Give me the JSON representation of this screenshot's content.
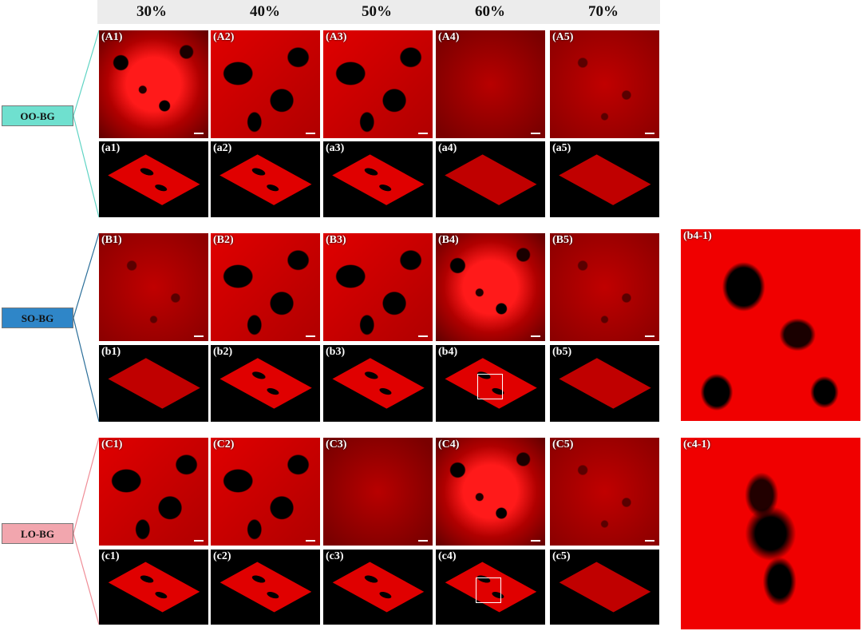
{
  "columns": [
    "30%",
    "40%",
    "50%",
    "60%",
    "70%"
  ],
  "groups": [
    {
      "name": "OO-BG",
      "color": "#6fe0cf",
      "line_color": "#5fd4c4"
    },
    {
      "name": "SO-BG",
      "color": "#2f86c8",
      "line_color": "#2a6e99"
    },
    {
      "name": "LO-BG",
      "color": "#f2a6ae",
      "line_color": "#f08c96"
    }
  ],
  "panels": {
    "row_A": [
      "(A1)",
      "(A2)",
      "(A3)",
      "(A4)",
      "(A5)"
    ],
    "row_a": [
      "(a1)",
      "(a2)",
      "(a3)",
      "(a4)",
      "(a5)"
    ],
    "row_B": [
      "(B1)",
      "(B2)",
      "(B3)",
      "(B4)",
      "(B5)"
    ],
    "row_b": [
      "(b1)",
      "(b2)",
      "(b3)",
      "(b4)",
      "(b5)"
    ],
    "row_C": [
      "(C1)",
      "(C2)",
      "(C3)",
      "(C4)",
      "(C5)"
    ],
    "row_c": [
      "(c1)",
      "(c2)",
      "(c3)",
      "(c4)",
      "(c5)"
    ]
  },
  "zoom_panels": [
    "(b4-1)",
    "(c4-1)"
  ],
  "image_descriptions": {
    "colors": {
      "stain": "#e00000",
      "void": "#000000"
    }
  }
}
